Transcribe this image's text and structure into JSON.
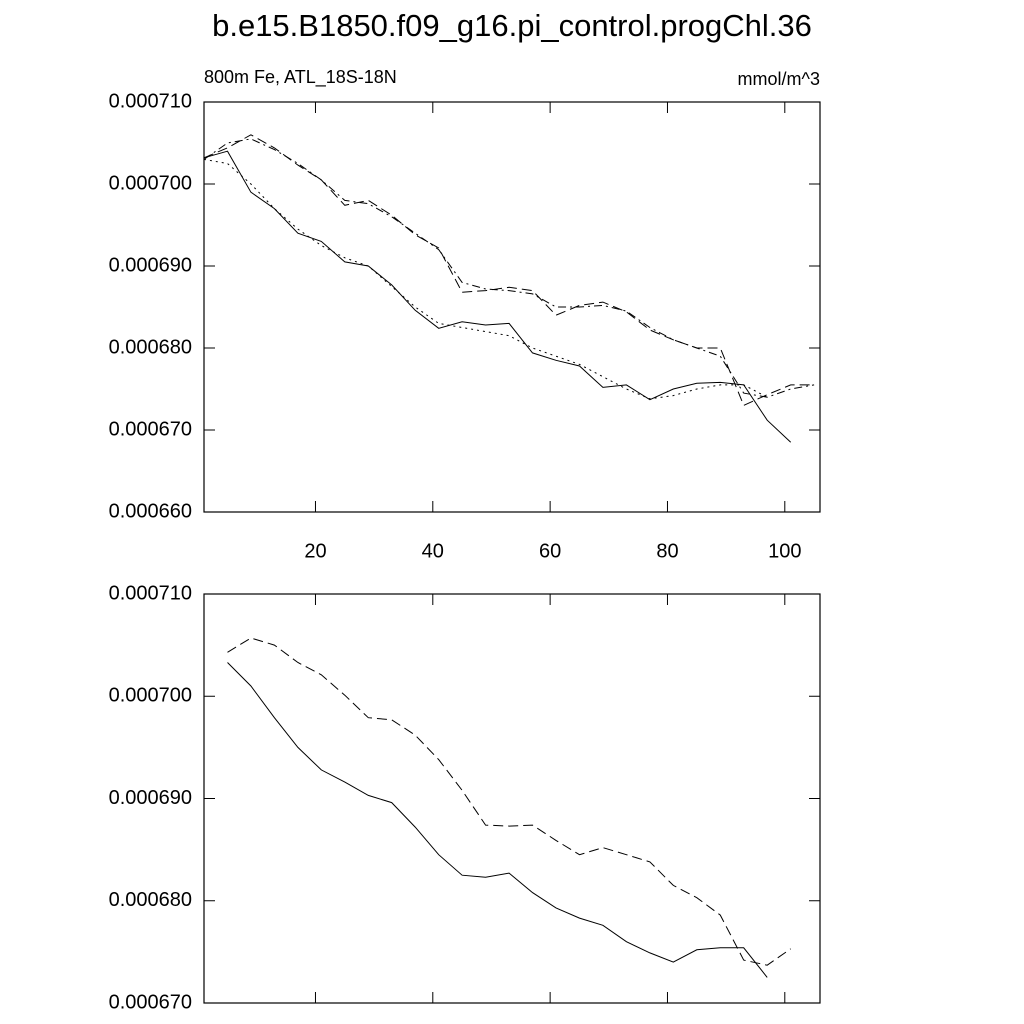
{
  "chart_data": [
    {
      "type": "line",
      "title": "b.e15.B1850.f09_g16.pi_control.progChl.36",
      "subtitle": "800m Fe, ATL_18S-18N",
      "units": "mmol/m^3",
      "x": [
        1,
        5,
        9,
        13,
        17,
        21,
        25,
        29,
        33,
        37,
        41,
        45,
        49,
        53,
        57,
        61,
        65,
        69,
        73,
        77,
        81,
        85,
        89,
        93,
        97,
        101,
        105
      ],
      "series": [
        {
          "color": "#000000",
          "dash": "solid",
          "values": [
            0.0007032,
            0.000704,
            0.000699,
            0.000697,
            0.000694,
            0.000693,
            0.0006905,
            0.00069,
            0.0006877,
            0.0006846,
            0.0006824,
            0.0006832,
            0.0006828,
            0.000683,
            0.0006794,
            0.0006785,
            0.0006778,
            0.0006752,
            0.0006755,
            0.0006737,
            0.000675,
            0.0006757,
            0.0006758,
            0.0006755,
            0.0006712,
            0.0006685,
            null
          ]
        },
        {
          "color": "#000000",
          "dash": "dashed",
          "values": [
            0.0007032,
            0.0007044,
            0.000706,
            0.0007044,
            0.0007023,
            0.0007005,
            0.0006974,
            0.000698,
            0.0006962,
            0.0006938,
            0.0006922,
            0.0006868,
            0.000687,
            0.0006874,
            0.000687,
            0.000684,
            0.0006852,
            0.0006856,
            0.0006844,
            0.0006822,
            0.000681,
            0.00068,
            0.00068,
            0.000673,
            0.0006743,
            0.0006755,
            0.0006755
          ]
        },
        {
          "color": "#000000",
          "dash": "dotted",
          "values": [
            0.000703,
            0.0007025,
            0.0007,
            0.000697,
            0.0006945,
            0.0006925,
            0.000691,
            0.00069,
            0.0006875,
            0.000685,
            0.000683,
            0.0006825,
            0.000682,
            0.0006815,
            0.00068,
            0.000679,
            0.000678,
            0.0006765,
            0.000675,
            0.0006738,
            0.0006742,
            0.000675,
            0.0006755,
            0.0006755,
            0.000674,
            null,
            null
          ]
        },
        {
          "color": "#000000",
          "dash": "dashdot",
          "values": [
            0.000703,
            0.000705,
            0.0007055,
            0.0007042,
            0.0007025,
            0.0007005,
            0.000698,
            0.0006976,
            0.000696,
            0.000694,
            0.000692,
            0.000688,
            0.0006872,
            0.000687,
            0.0006866,
            0.000685,
            0.000685,
            0.0006852,
            0.0006845,
            0.0006825,
            0.000681,
            0.00068,
            0.000679,
            0.0006745,
            0.000674,
            0.000675,
            0.0006755
          ]
        }
      ],
      "xlim": [
        1,
        106
      ],
      "xticks": [
        20,
        40,
        60,
        80,
        100
      ],
      "ylim": [
        0.00066,
        0.00071
      ],
      "yticks": [
        {
          "value": 0.00066,
          "label": "0.000660"
        },
        {
          "value": 0.00067,
          "label": "0.000670"
        },
        {
          "value": 0.00068,
          "label": "0.000680"
        },
        {
          "value": 0.00069,
          "label": "0.000690"
        },
        {
          "value": 0.0007,
          "label": "0.000700"
        },
        {
          "value": 0.00071,
          "label": "0.000710"
        }
      ]
    },
    {
      "type": "line",
      "x": [
        5,
        9,
        13,
        17,
        21,
        25,
        29,
        33,
        37,
        41,
        45,
        49,
        53,
        57,
        61,
        65,
        69,
        73,
        77,
        81,
        85,
        89,
        93,
        97,
        101
      ],
      "series": [
        {
          "color": "#000000",
          "dash": "solid",
          "values": [
            0.0007033,
            0.000701,
            0.0006979,
            0.000695,
            0.0006928,
            0.0006916,
            0.0006903,
            0.0006896,
            0.0006872,
            0.0006845,
            0.0006825,
            0.0006823,
            0.0006827,
            0.0006808,
            0.0006793,
            0.0006783,
            0.0006776,
            0.000676,
            0.0006749,
            0.000674,
            0.0006752,
            0.0006754,
            0.0006754,
            0.0006725,
            null
          ]
        },
        {
          "color": "#000000",
          "dash": "dashed",
          "values": [
            0.0007043,
            0.0007057,
            0.000705,
            0.0007033,
            0.0007021,
            0.0007001,
            0.0006979,
            0.0006977,
            0.0006962,
            0.0006938,
            0.0006908,
            0.0006874,
            0.0006873,
            0.0006874,
            0.0006859,
            0.0006845,
            0.0006852,
            0.0006845,
            0.0006838,
            0.0006815,
            0.0006803,
            0.0006786,
            0.0006742,
            0.0006737,
            0.0006753
          ]
        }
      ],
      "xlim": [
        1,
        106
      ],
      "ylim": [
        0.00067,
        0.00071
      ],
      "yticks": [
        {
          "value": 0.00067,
          "label": "0.000670"
        },
        {
          "value": 0.00068,
          "label": "0.000680"
        },
        {
          "value": 0.00069,
          "label": "0.000690"
        },
        {
          "value": 0.0007,
          "label": "0.000700"
        },
        {
          "value": 0.00071,
          "label": "0.000710"
        }
      ]
    }
  ]
}
